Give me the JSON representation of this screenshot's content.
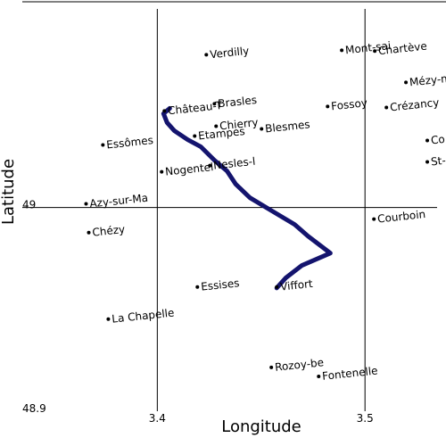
{
  "chart_data": {
    "type": "scatter",
    "x_label": "Longitude",
    "y_label": "Latitude",
    "xlim": [
      3.335,
      3.539
    ],
    "ylim": [
      48.9,
      49.101
    ],
    "xticks": [
      3.4,
      3.5
    ],
    "yticks": [
      48.9,
      49
    ],
    "grid": true,
    "cities": {
      "labels": [
        "Verdilly",
        "Mont-sai",
        "Chartève",
        "Mézy-m",
        "Château-T",
        "Brasles",
        "Fossoy",
        "Crézancy",
        "Chierry",
        "Blesmes",
        "Etampes",
        "Co",
        "Essômes",
        "St-",
        "Nogentel",
        "Nesles-l",
        "Azy-sur-Ma",
        "Chézy",
        "Courboin",
        "Essises",
        "Viffort",
        "La Chapelle",
        "Rozoy-be",
        "Fontenelle"
      ],
      "x": [
        3.4236,
        3.4888,
        3.5047,
        3.5197,
        3.4034,
        3.4275,
        3.482,
        3.5103,
        3.4283,
        3.4502,
        3.418,
        3.53,
        3.3738,
        3.53,
        3.4021,
        3.4253,
        3.3657,
        3.367,
        3.5043,
        3.4193,
        3.4575,
        3.3764,
        3.4549,
        3.4777
      ],
      "y": [
        49.075,
        49.0772,
        49.0768,
        49.0614,
        49.0474,
        49.0509,
        49.0496,
        49.0491,
        49.0399,
        49.0386,
        49.0351,
        49.0329,
        49.0307,
        49.0224,
        49.0175,
        49.0206,
        49.0018,
        48.9877,
        48.9943,
        48.961,
        48.961,
        48.9452,
        48.9215,
        48.9171
      ],
      "color": "#000000"
    },
    "route": {
      "x": [
        3.4575,
        3.4618,
        3.4695,
        3.4833,
        3.4725,
        3.4661,
        3.4554,
        3.4446,
        3.4378,
        3.4335,
        3.4275,
        3.421,
        3.4146,
        3.4082,
        3.4047,
        3.403,
        3.406
      ],
      "y": [
        48.9605,
        48.9654,
        48.9715,
        48.9776,
        48.986,
        48.9917,
        48.9982,
        49.0048,
        49.0114,
        49.018,
        49.0232,
        49.0298,
        49.0333,
        49.0377,
        49.0417,
        49.0461,
        49.0487
      ],
      "color": "#14146e"
    }
  }
}
